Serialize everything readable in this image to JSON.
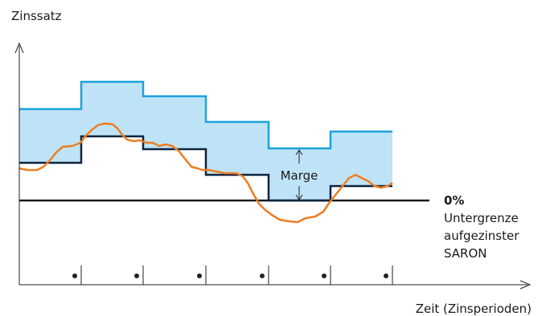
{
  "labels": {
    "y_axis": "Zinssatz",
    "x_axis": "Zeit (Zinsperioden)",
    "zero": "0%",
    "floor_line1": "Untergrenze",
    "floor_line2": "aufgezinster",
    "floor_line3": "SARON",
    "margin": "Marge"
  },
  "colors": {
    "axis": "#222222",
    "base_rate": "#0d2440",
    "upper_rate": "#1aa3d9",
    "band_fill": "#bfe3f6",
    "saron": "#ee7d22",
    "zero_line": "#1a1a1a"
  }
}
